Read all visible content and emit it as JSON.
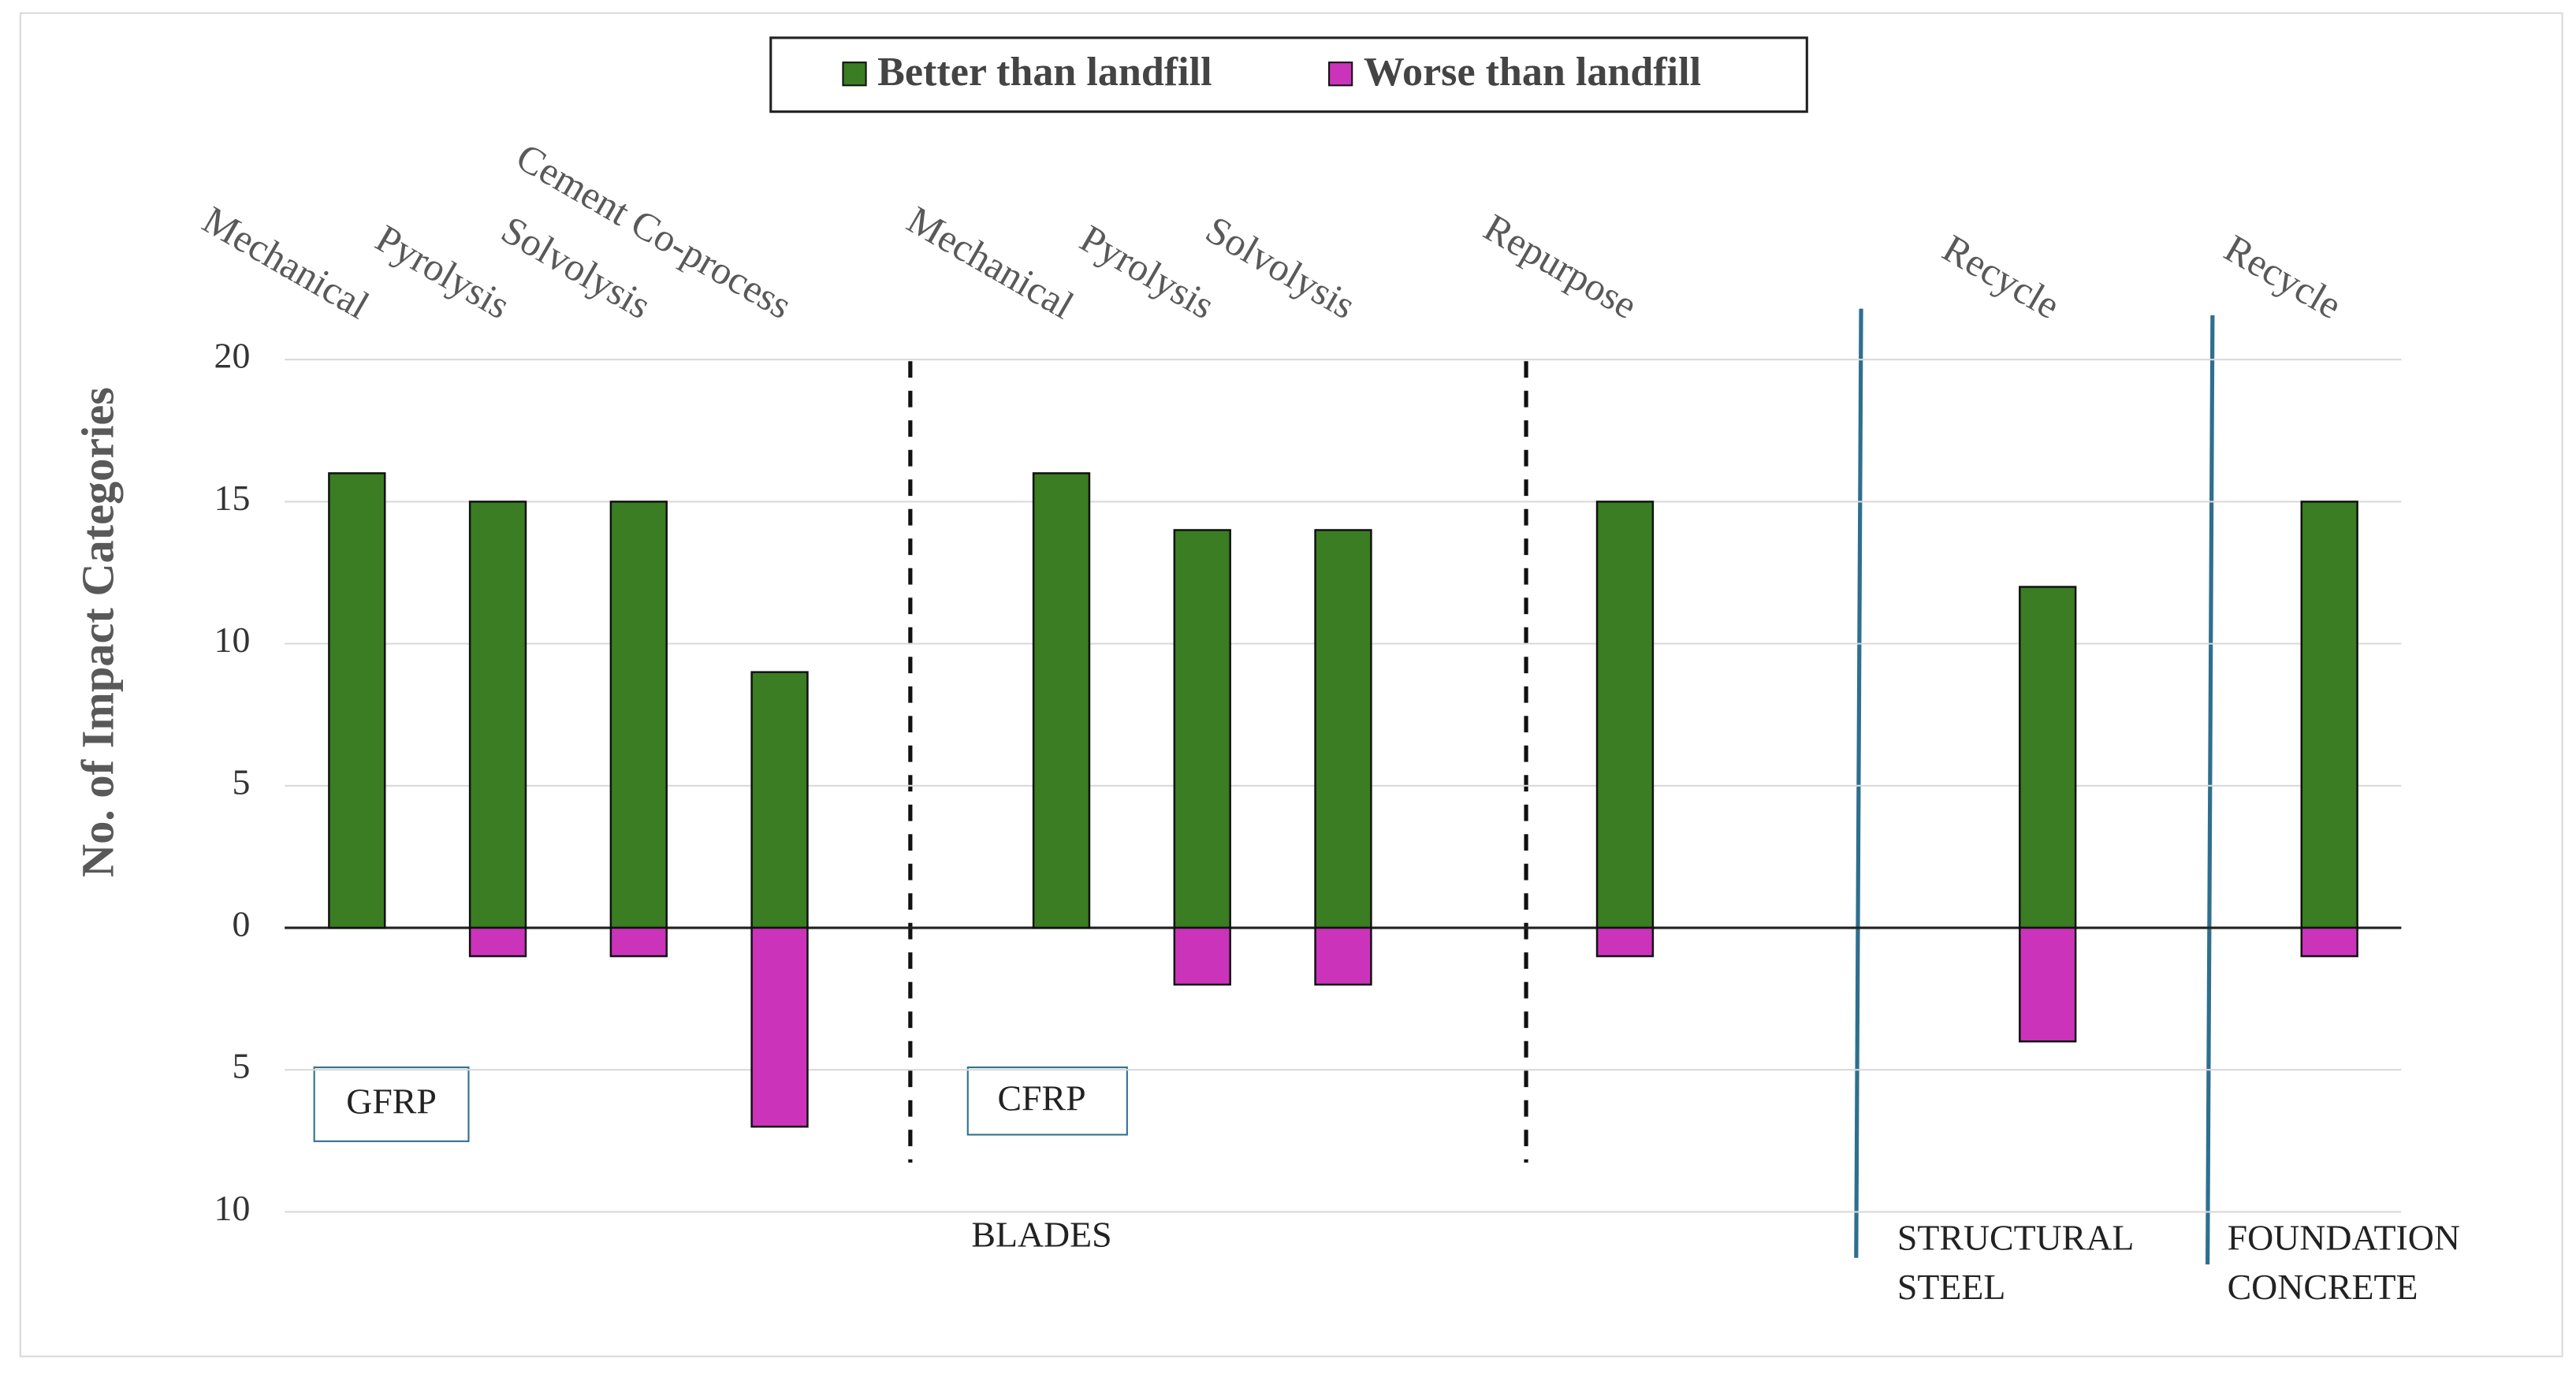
{
  "chart_data": {
    "type": "bar",
    "y_label": "No. of Impact Categories",
    "categories": [
      "Mechanical",
      "Pyrolysis",
      "Solvolysis",
      "Cement Co-process",
      null,
      "Mechanical",
      "Pyrolysis",
      "Solvolysis",
      null,
      "Repurpose",
      null,
      null,
      "Recycle",
      null,
      "Recycle"
    ],
    "series": [
      {
        "name": "Better than landfill",
        "color": "#3a7d22",
        "values": [
          16,
          15,
          15,
          9,
          null,
          16,
          14,
          14,
          null,
          15,
          null,
          null,
          12,
          null,
          15
        ]
      },
      {
        "name": "Worse than landfill",
        "color": "#cc33bb",
        "values": [
          0,
          -1,
          -1,
          -7,
          null,
          0,
          -2,
          -2,
          null,
          -1,
          null,
          null,
          -4,
          null,
          -1
        ]
      }
    ],
    "ylim": [
      -10,
      20
    ],
    "yticks": [
      {
        "value": -10,
        "label": "10"
      },
      {
        "value": -5,
        "label": "5"
      },
      0,
      5,
      10,
      15,
      20
    ],
    "grid": true,
    "legend": "top",
    "annotations": {
      "gfrp": "GFRP",
      "cfrp": "CFRP",
      "blades": "BLADES",
      "structural_steel": [
        "STRUCTURAL",
        "STEEL"
      ],
      "foundation_concrete": [
        "FOUNDATION",
        "CONCRETE"
      ]
    }
  }
}
